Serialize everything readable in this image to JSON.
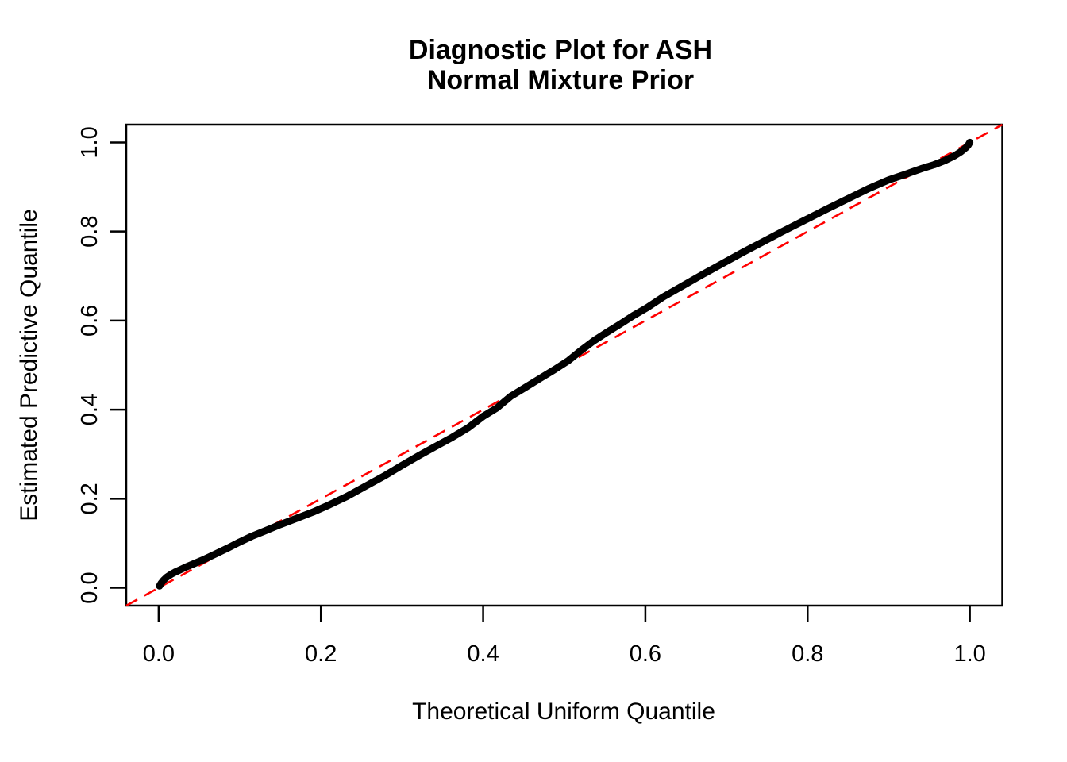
{
  "figure": {
    "background": "#FFFFFF",
    "title_line1": "Diagnostic Plot for ASH",
    "title_line2": "Normal Mixture Prior"
  },
  "chart_data": {
    "type": "line",
    "title": "Diagnostic Plot for ASH\nNormal Mixture Prior",
    "xlabel": "Theoretical Uniform Quantile",
    "ylabel": "Estimated Predictive Quantile",
    "xlim": [
      -0.04,
      1.04
    ],
    "ylim": [
      -0.04,
      1.04
    ],
    "grid": false,
    "legend": null,
    "x_ticks": [
      0.0,
      0.2,
      0.4,
      0.6,
      0.8,
      1.0
    ],
    "y_ticks": [
      0.0,
      0.2,
      0.4,
      0.6,
      0.8,
      1.0
    ],
    "x_tick_labels": [
      "0.0",
      "0.2",
      "0.4",
      "0.6",
      "0.8",
      "1.0"
    ],
    "y_tick_labels": [
      "0.0",
      "0.2",
      "0.4",
      "0.6",
      "0.8",
      "1.0"
    ],
    "series": [
      {
        "name": "estimated-predictive-quantile-curve",
        "color": "#000000",
        "line_width": 9,
        "style": "solid",
        "x": [
          0.001,
          0.003,
          0.006,
          0.01,
          0.015,
          0.02,
          0.026,
          0.033,
          0.042,
          0.055,
          0.07,
          0.085,
          0.1,
          0.115,
          0.13,
          0.15,
          0.17,
          0.19,
          0.21,
          0.232,
          0.255,
          0.278,
          0.3,
          0.322,
          0.342,
          0.362,
          0.382,
          0.4,
          0.417,
          0.434,
          0.452,
          0.47,
          0.488,
          0.505,
          0.52,
          0.536,
          0.552,
          0.568,
          0.585,
          0.602,
          0.622,
          0.646,
          0.67,
          0.694,
          0.72,
          0.744,
          0.768,
          0.795,
          0.822,
          0.85,
          0.876,
          0.9,
          0.92,
          0.94,
          0.956,
          0.97,
          0.981,
          0.989,
          0.995,
          0.998,
          1.0
        ],
        "y": [
          0.004,
          0.01,
          0.017,
          0.024,
          0.03,
          0.035,
          0.04,
          0.046,
          0.053,
          0.063,
          0.076,
          0.089,
          0.103,
          0.116,
          0.127,
          0.142,
          0.156,
          0.17,
          0.186,
          0.205,
          0.228,
          0.251,
          0.275,
          0.298,
          0.318,
          0.338,
          0.36,
          0.385,
          0.404,
          0.43,
          0.45,
          0.47,
          0.49,
          0.51,
          0.532,
          0.554,
          0.573,
          0.591,
          0.611,
          0.629,
          0.653,
          0.678,
          0.703,
          0.727,
          0.753,
          0.776,
          0.799,
          0.824,
          0.849,
          0.874,
          0.897,
          0.916,
          0.928,
          0.941,
          0.95,
          0.96,
          0.97,
          0.979,
          0.988,
          0.994,
          1.0
        ]
      }
    ],
    "reference_line": {
      "name": "identity-line",
      "equation": "y = x",
      "color": "#FF0000",
      "style": "dashed",
      "line_width": 2.6,
      "x": [
        -0.04,
        1.04
      ],
      "y": [
        -0.04,
        1.04
      ]
    }
  },
  "colors": {
    "curve": "#000000",
    "reference": "#FF0000",
    "frame": "#000000",
    "background": "#FFFFFF"
  }
}
